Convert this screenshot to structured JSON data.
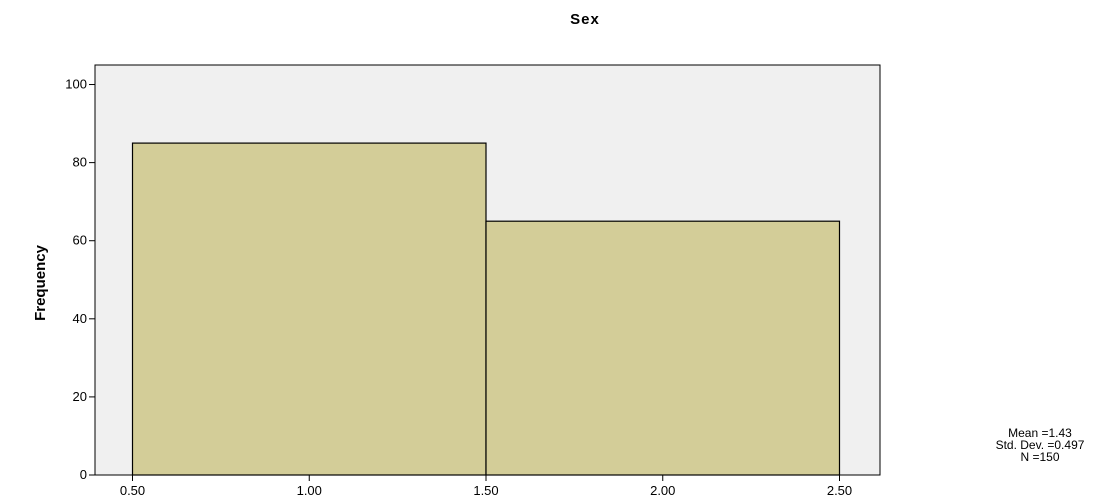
{
  "chart_data": {
    "type": "bar",
    "subtype": "histogram",
    "title": "Sex",
    "xlabel": "",
    "ylabel": "Frequency",
    "bins": [
      {
        "from": 0.5,
        "to": 1.5,
        "value": 85
      },
      {
        "from": 1.5,
        "to": 2.5,
        "value": 65
      }
    ],
    "xlim": [
      0.5,
      2.5
    ],
    "ylim": [
      0,
      100
    ],
    "x_ticks": [
      0.5,
      1.0,
      1.5,
      2.0,
      2.5
    ],
    "x_tick_labels": [
      "0.50",
      "1.00",
      "1.50",
      "2.00",
      "2.50"
    ],
    "y_ticks": [
      0,
      20,
      40,
      60,
      80,
      100
    ],
    "y_tick_labels": [
      "0",
      "20",
      "40",
      "60",
      "80",
      "100"
    ],
    "grid": false,
    "bar_color": "#d3cd98",
    "plot_background": "#f0f0f0",
    "stats": {
      "mean": "Mean =1.43",
      "std_dev": "Std. Dev. =0.497",
      "n": "N =150"
    }
  }
}
